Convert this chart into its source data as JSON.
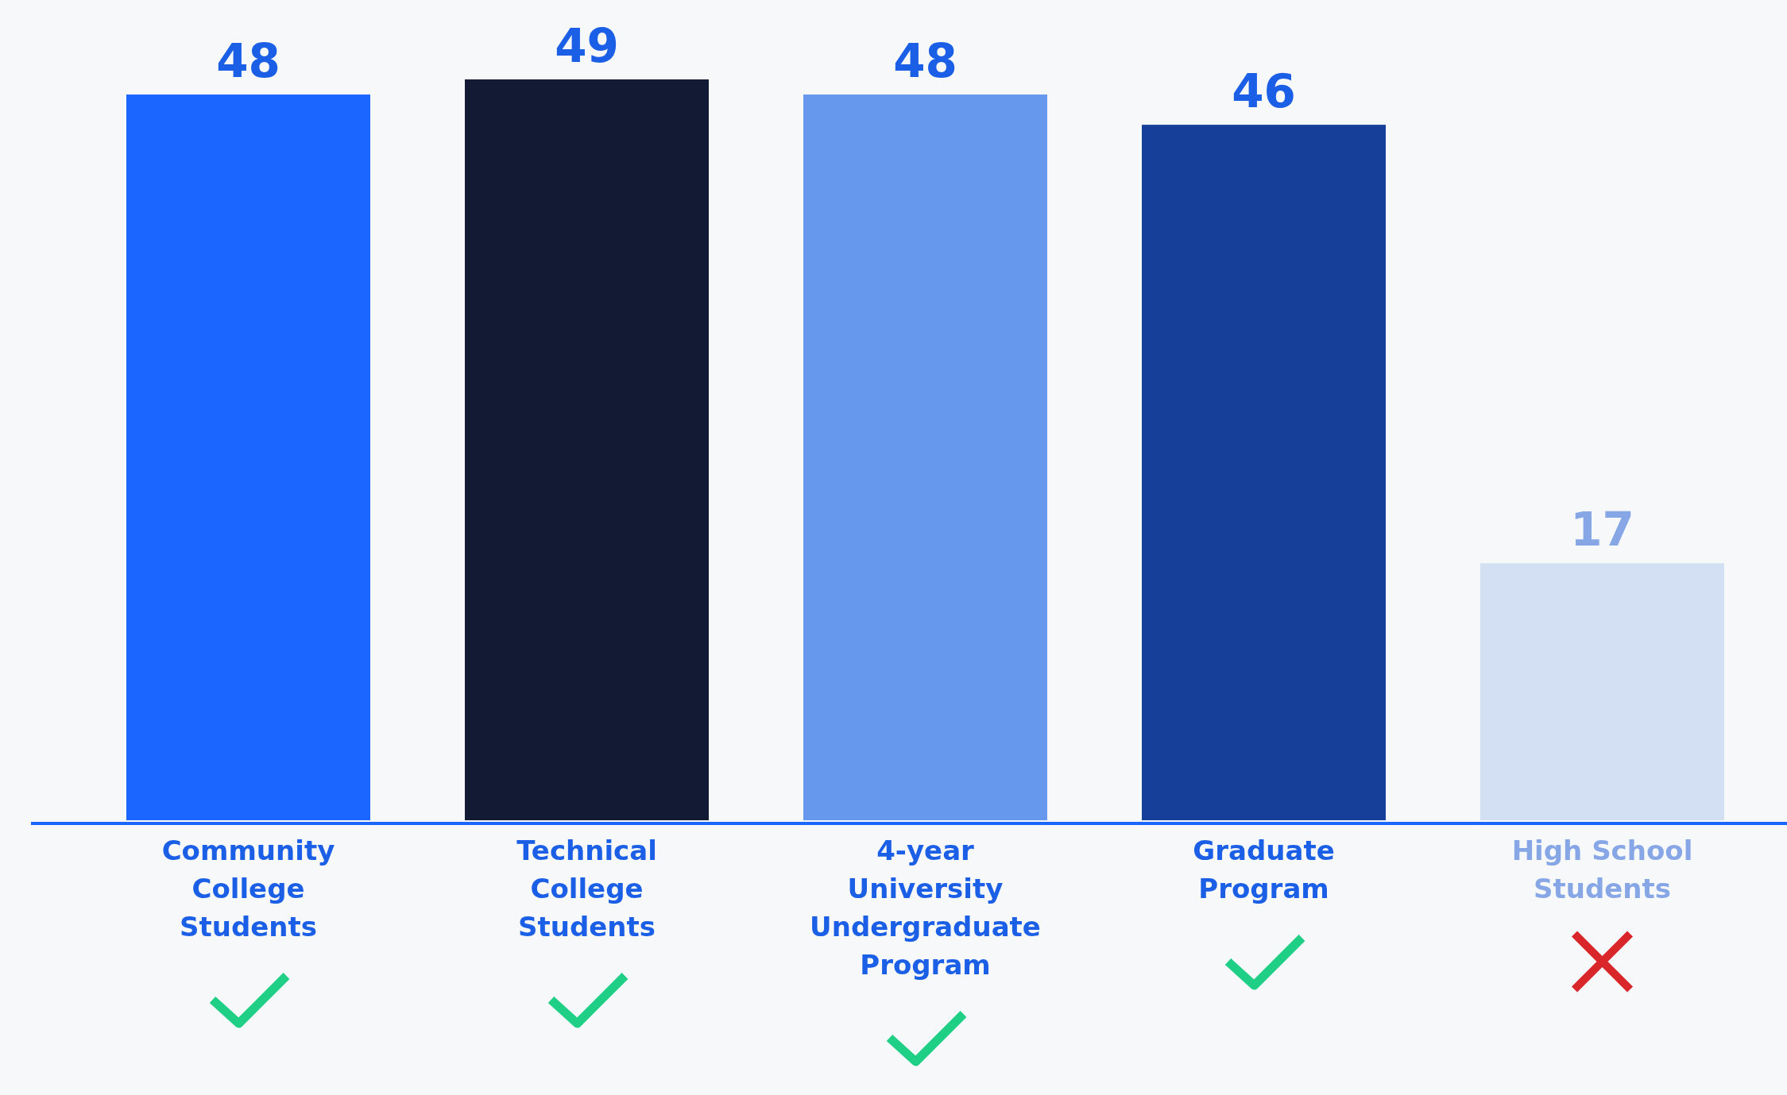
{
  "chart_data": {
    "type": "bar",
    "categories": [
      "Community College Students",
      "Technical College Students",
      "4-year University Undergraduate Program",
      "Graduate Program",
      "High School Students"
    ],
    "values": [
      48,
      49,
      48,
      46,
      17
    ],
    "colors": [
      "#1a66ff",
      "#131a33",
      "#6699ee",
      "#163f99",
      "#d3e0f4"
    ],
    "data_labels": true
  }
}
